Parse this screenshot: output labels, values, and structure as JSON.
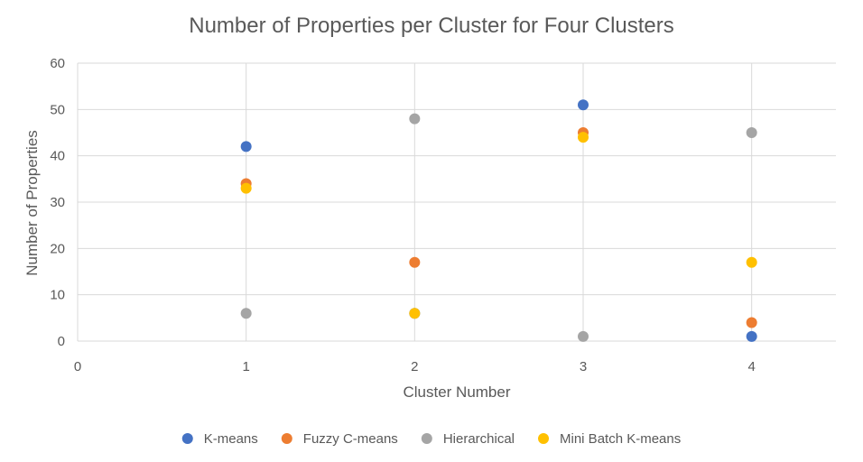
{
  "chart_data": {
    "type": "scatter",
    "title": "Number of Properties per Cluster for Four Clusters",
    "xlabel": "Cluster Number",
    "ylabel": "Number of Properties",
    "xlim": [
      0,
      4.5
    ],
    "ylim": [
      0,
      60
    ],
    "x_ticks": [
      "0",
      "1",
      "2",
      "3",
      "4"
    ],
    "y_ticks": [
      "0",
      "10",
      "20",
      "30",
      "40",
      "50",
      "60"
    ],
    "grid": true,
    "legend_position": "bottom",
    "x": [
      1,
      2,
      3,
      4
    ],
    "series": [
      {
        "name": "K-means",
        "color": "#4472C4",
        "values": [
          42,
          6,
          51,
          1
        ]
      },
      {
        "name": "Fuzzy C-means",
        "color": "#ED7D31",
        "values": [
          34,
          17,
          45,
          4
        ]
      },
      {
        "name": "Hierarchical",
        "color": "#A5A5A5",
        "values": [
          6,
          48,
          1,
          45
        ]
      },
      {
        "name": "Mini Batch K-means",
        "color": "#FFC000",
        "values": [
          33,
          6,
          44,
          17
        ]
      }
    ]
  }
}
